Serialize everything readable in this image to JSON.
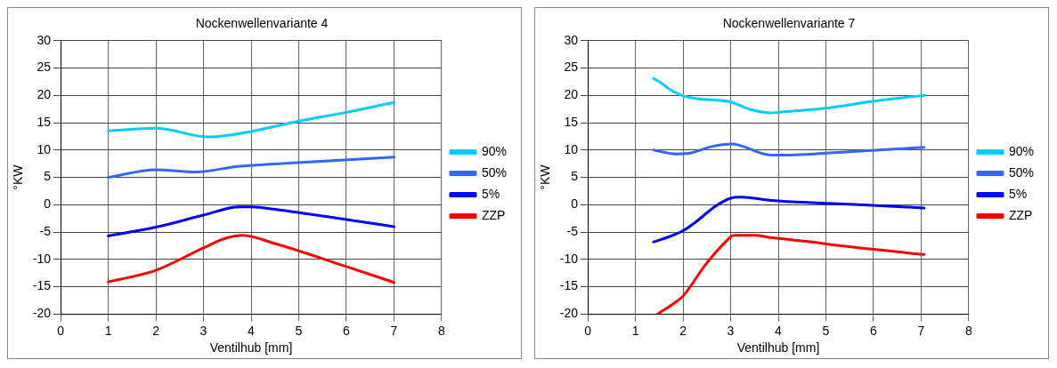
{
  "chart_data": [
    {
      "type": "line",
      "title": "Nockenwellenvariante 4",
      "xlabel": "Ventilhub [mm]",
      "ylabel": "°KW",
      "xlim": [
        0,
        8
      ],
      "xticks": [
        0,
        1,
        2,
        3,
        4,
        5,
        6,
        7,
        8
      ],
      "ylim": [
        -20,
        30
      ],
      "yticks": [
        -20,
        -15,
        -10,
        -5,
        0,
        5,
        10,
        15,
        20,
        25,
        30
      ],
      "grid": true,
      "legend": "right",
      "marker": "none",
      "line_style": "solid",
      "series": [
        {
          "name": "90%",
          "color": "#00ccff",
          "x": [
            1,
            2,
            3.1,
            4,
            5,
            6,
            7
          ],
          "values": [
            13.5,
            14.0,
            12.4,
            13.4,
            15.3,
            16.9,
            18.7
          ]
        },
        {
          "name": "50%",
          "color": "#3366ff",
          "x": [
            1,
            2,
            2.85,
            3.7,
            4.4,
            7
          ],
          "values": [
            5.0,
            6.4,
            6.0,
            7.0,
            7.4,
            8.7
          ]
        },
        {
          "name": "5%",
          "color": "#0000ff",
          "x": [
            1,
            2,
            3,
            3.74,
            4,
            4.56,
            6,
            7
          ],
          "values": [
            -5.7,
            -4.1,
            -1.9,
            -0.4,
            -0.4,
            -0.9,
            -2.7,
            -4.0
          ]
        },
        {
          "name": "ZZP",
          "color": "#ff0000",
          "x": [
            1,
            1.68,
            2,
            3,
            3.44,
            3.82,
            4.5,
            6,
            7
          ],
          "values": [
            -14.1,
            -12.8,
            -12.0,
            -7.9,
            -6.2,
            -5.6,
            -7.1,
            -11.3,
            -14.2
          ]
        }
      ]
    },
    {
      "type": "line",
      "title": "Nockenwellenvariante 7",
      "xlabel": "Ventilhub [mm]",
      "ylabel": "°KW",
      "xlim": [
        0,
        8
      ],
      "xticks": [
        0,
        1,
        2,
        3,
        4,
        5,
        6,
        7,
        8
      ],
      "ylim": [
        -20,
        30
      ],
      "yticks": [
        -20,
        -15,
        -10,
        -5,
        0,
        5,
        10,
        15,
        20,
        25,
        30
      ],
      "grid": true,
      "legend": "right",
      "marker": "none",
      "line_style": "solid",
      "series": [
        {
          "name": "90%",
          "color": "#00ccff",
          "x": [
            1.38,
            1.54,
            1.72,
            2.01,
            2.29,
            3.0,
            3.39,
            3.85,
            4.0,
            4.94,
            5.98,
            7.06
          ],
          "values": [
            23.1,
            22.3,
            21.1,
            19.9,
            19.4,
            18.8,
            17.5,
            16.8,
            16.9,
            17.6,
            18.9,
            20.0
          ]
        },
        {
          "name": "50%",
          "color": "#3366ff",
          "x": [
            1.38,
            1.86,
            2.18,
            2.58,
            3.04,
            3.21,
            3.85,
            4.25,
            4.94,
            7.06
          ],
          "values": [
            10.0,
            9.3,
            9.5,
            10.6,
            11.1,
            10.8,
            9.1,
            9.1,
            9.4,
            10.5
          ]
        },
        {
          "name": "5%",
          "color": "#0000ff",
          "x": [
            1.38,
            1.66,
            2.01,
            2.29,
            2.64,
            3.0,
            3.21,
            3.5,
            3.85,
            4.94,
            5.98,
            7.06
          ],
          "values": [
            -6.8,
            -6.0,
            -4.7,
            -3.0,
            -0.5,
            1.2,
            1.4,
            1.2,
            0.8,
            0.3,
            -0.1,
            -0.6
          ]
        },
        {
          "name": "ZZP",
          "color": "#ff0000",
          "x": [
            1.46,
            1.83,
            2.01,
            2.46,
            2.87,
            3.07,
            3.5,
            3.85,
            4.59,
            5.4,
            7.06
          ],
          "values": [
            -20,
            -17.9,
            -16.6,
            -11.1,
            -7.0,
            -5.6,
            -5.6,
            -6.0,
            -6.7,
            -7.6,
            -9.1
          ]
        }
      ]
    }
  ]
}
